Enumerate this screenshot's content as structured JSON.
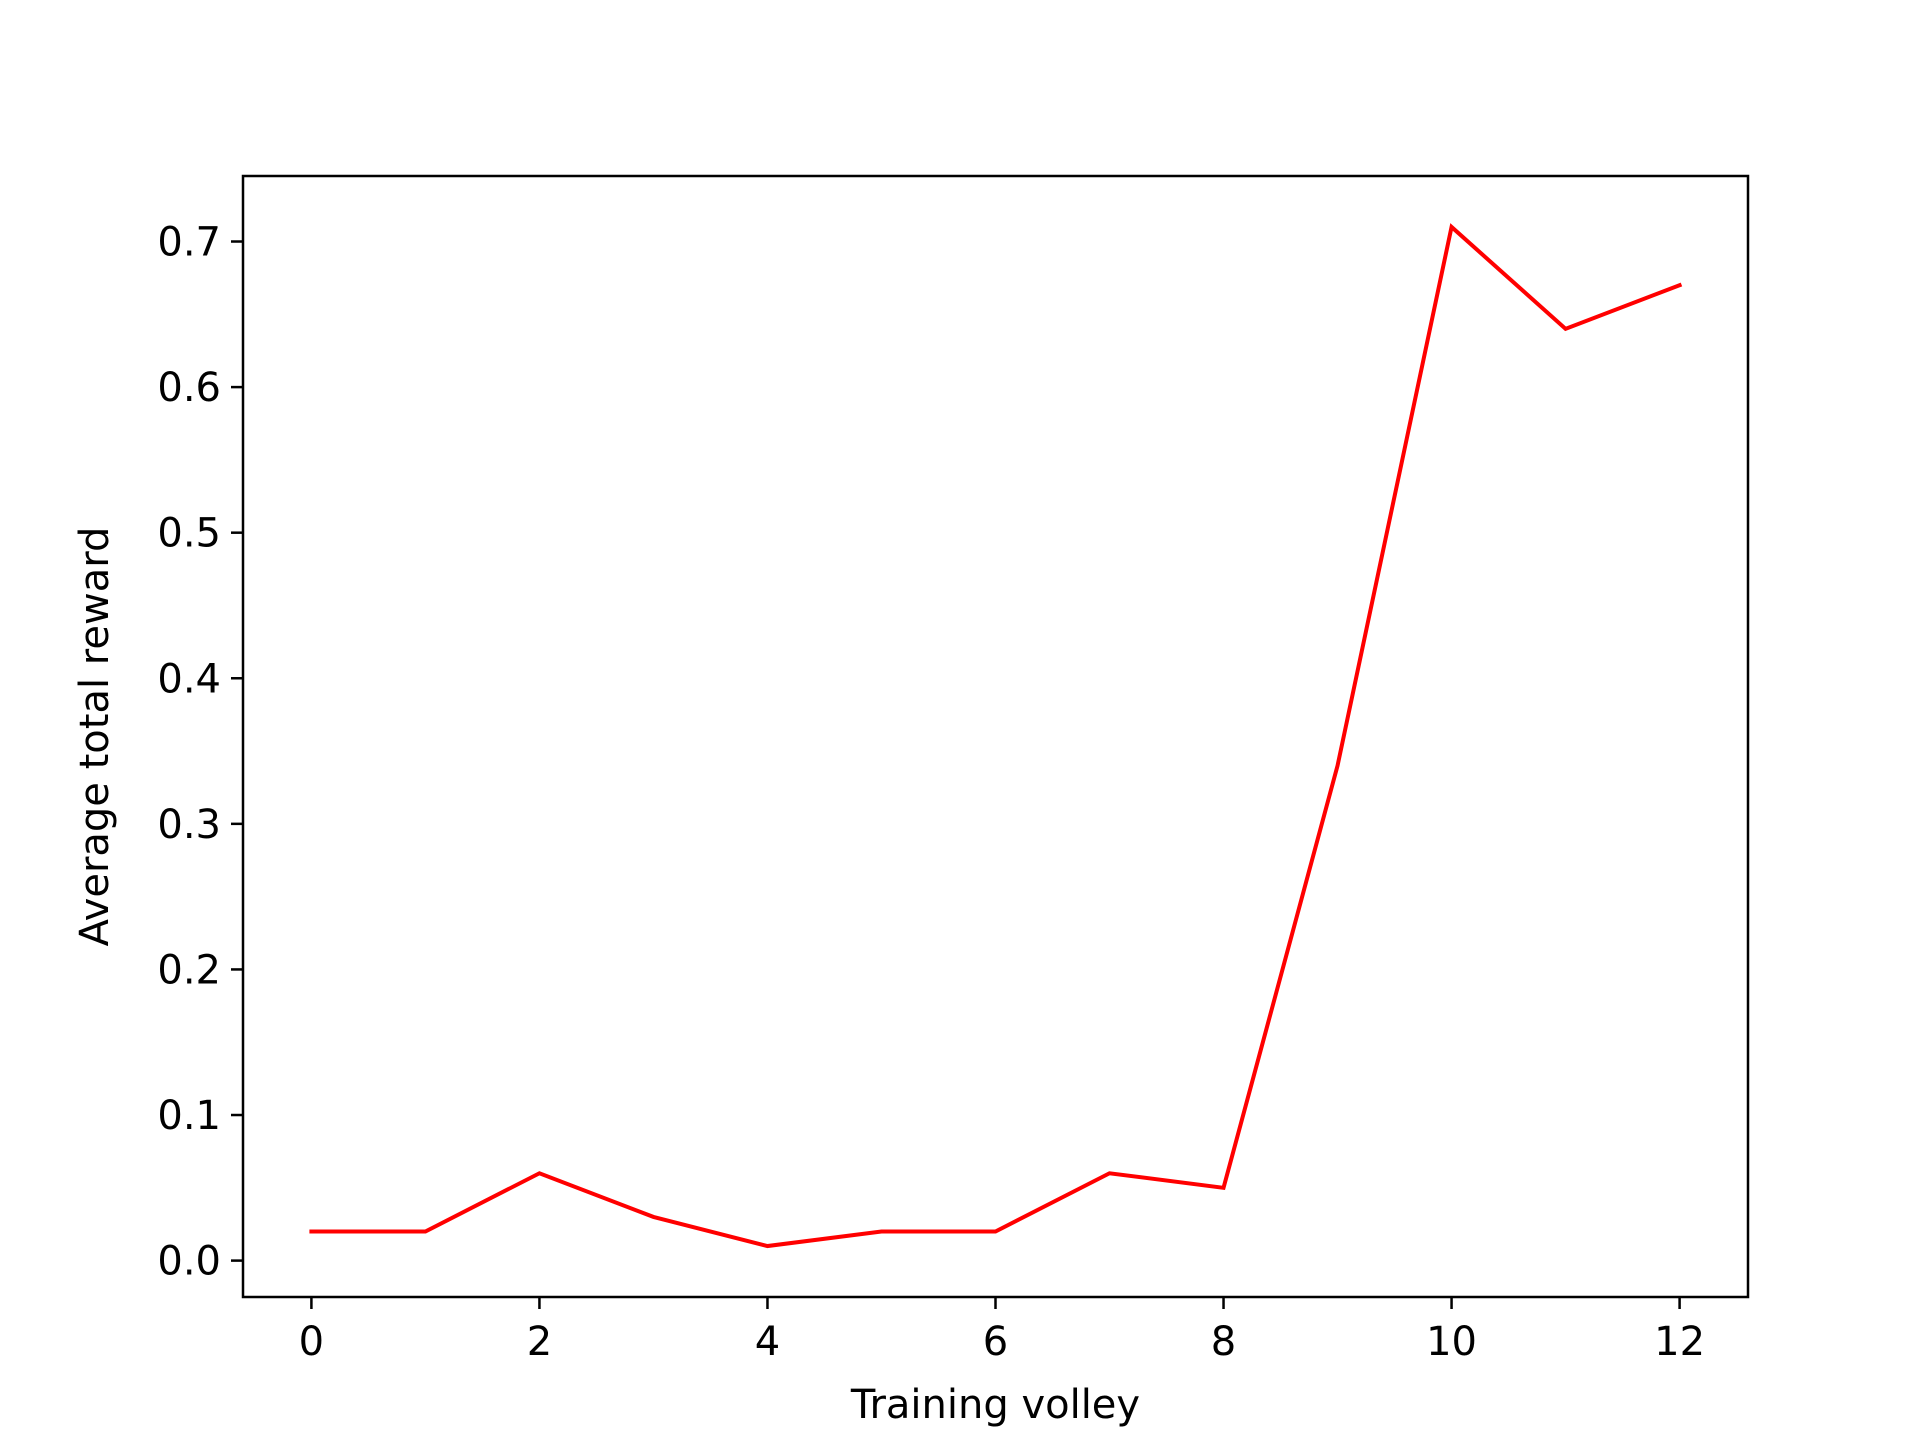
{
  "chart_data": {
    "type": "line",
    "title": "",
    "xlabel": "Training volley",
    "ylabel": "Average total reward",
    "xlim": [
      -0.6,
      12.6
    ],
    "ylim": [
      -0.025,
      0.745
    ],
    "xticks": [
      0,
      2,
      4,
      6,
      8,
      10,
      12
    ],
    "xtick_labels": [
      "0",
      "2",
      "4",
      "6",
      "8",
      "10",
      "12"
    ],
    "yticks": [
      0.0,
      0.1,
      0.2,
      0.3,
      0.4,
      0.5,
      0.6,
      0.7
    ],
    "ytick_labels": [
      "0.0",
      "0.1",
      "0.2",
      "0.3",
      "0.4",
      "0.5",
      "0.6",
      "0.7"
    ],
    "grid": false,
    "legend": false,
    "x": [
      0,
      1,
      2,
      3,
      4,
      5,
      6,
      7,
      8,
      9,
      10,
      11,
      12
    ],
    "series": [
      {
        "values": [
          0.02,
          0.02,
          0.06,
          0.03,
          0.01,
          0.02,
          0.02,
          0.06,
          0.05,
          0.34,
          0.71,
          0.64,
          0.67
        ],
        "color": "#ff0000"
      }
    ]
  }
}
